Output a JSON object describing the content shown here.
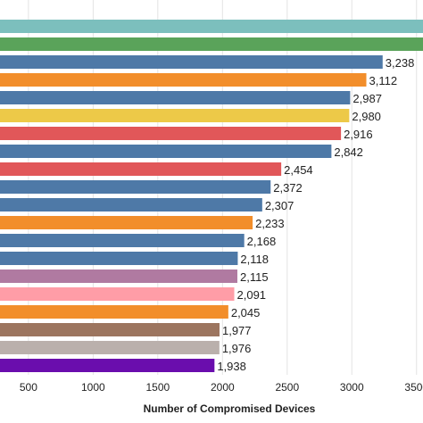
{
  "chart_data": {
    "type": "bar",
    "orientation": "horizontal",
    "xlabel": "Number of Compromised Devices",
    "xlim": [
      280,
      3550
    ],
    "xticks": [
      500,
      1000,
      1500,
      2000,
      2500,
      3000,
      3500
    ],
    "xtick_labels": [
      "500",
      "1000",
      "1500",
      "2000",
      "2500",
      "3000",
      "3500"
    ],
    "grid": "vertical",
    "bars": [
      {
        "value": 3600,
        "label": "",
        "color": "#7cbfbd"
      },
      {
        "value": 3560,
        "label": "",
        "color": "#5aa35a"
      },
      {
        "value": 3238,
        "label": "3,238",
        "color": "#4e79a7"
      },
      {
        "value": 3112,
        "label": "3,112",
        "color": "#f28e2b"
      },
      {
        "value": 2987,
        "label": "2,987",
        "color": "#4e79a7"
      },
      {
        "value": 2980,
        "label": "2,980",
        "color": "#edc948"
      },
      {
        "value": 2916,
        "label": "2,916",
        "color": "#e15759"
      },
      {
        "value": 2842,
        "label": "2,842",
        "color": "#4e79a7"
      },
      {
        "value": 2454,
        "label": "2,454",
        "color": "#e15759"
      },
      {
        "value": 2372,
        "label": "2,372",
        "color": "#4e79a7"
      },
      {
        "value": 2307,
        "label": "2,307",
        "color": "#4e79a7"
      },
      {
        "value": 2233,
        "label": "2,233",
        "color": "#f28e2b"
      },
      {
        "value": 2168,
        "label": "2,168",
        "color": "#4e79a7"
      },
      {
        "value": 2118,
        "label": "2,118",
        "color": "#4e79a7"
      },
      {
        "value": 2115,
        "label": "2,115",
        "color": "#b07aa1"
      },
      {
        "value": 2091,
        "label": "2,091",
        "color": "#ff9da7"
      },
      {
        "value": 2045,
        "label": "2,045",
        "color": "#f28e2b"
      },
      {
        "value": 1977,
        "label": "1,977",
        "color": "#9c755f"
      },
      {
        "value": 1976,
        "label": "1,976",
        "color": "#bab0ac"
      },
      {
        "value": 1938,
        "label": "1,938",
        "color": "#6a0dad"
      }
    ]
  }
}
